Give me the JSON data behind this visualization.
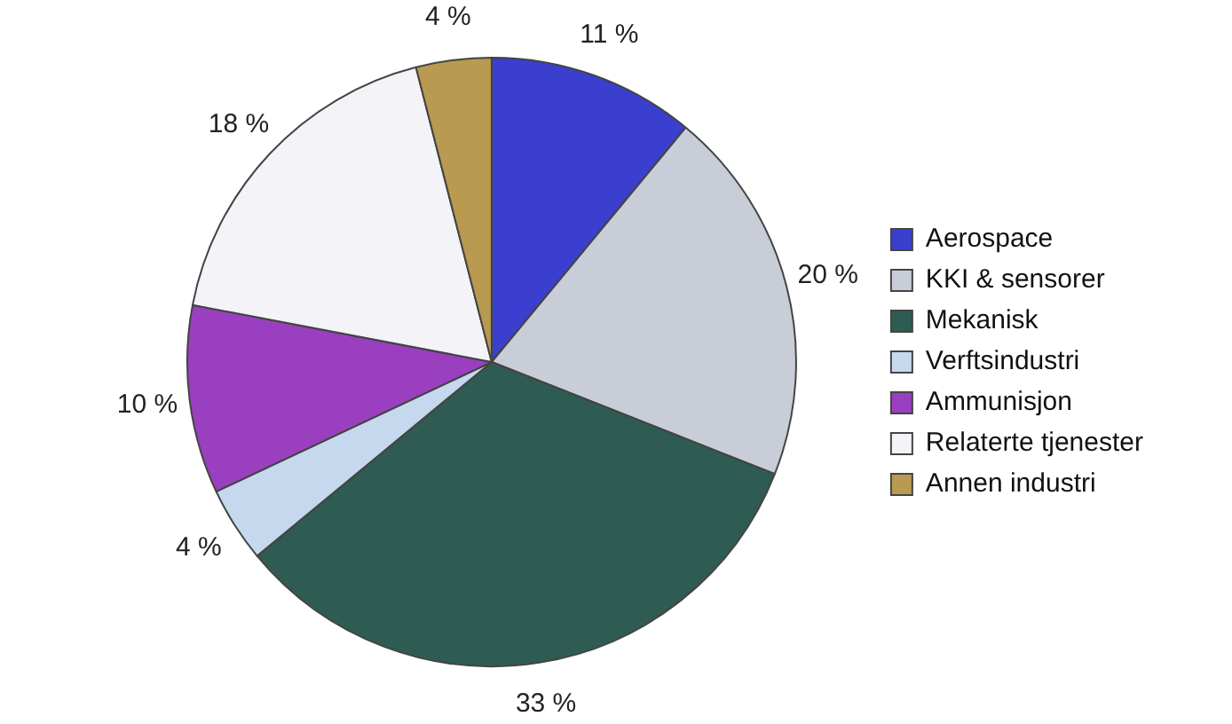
{
  "chart_data": {
    "type": "pie",
    "categories": [
      "Aerospace",
      "KKI & sensorer",
      "Mekanisk",
      "Verftsindustri",
      "Ammunisjon",
      "Relaterte tjenester",
      "Annen industri"
    ],
    "values": [
      11,
      20,
      33,
      4,
      10,
      18,
      4
    ],
    "value_labels": [
      "11 %",
      "20 %",
      "33 %",
      "4 %",
      "10 %",
      "18 %",
      "4 %"
    ],
    "colors": [
      "#3a3fcf",
      "#c8cdd8",
      "#2e5c52",
      "#c6d8ee",
      "#9a3fc0",
      "#f4f4f8",
      "#b89a50"
    ],
    "legend": "right"
  }
}
